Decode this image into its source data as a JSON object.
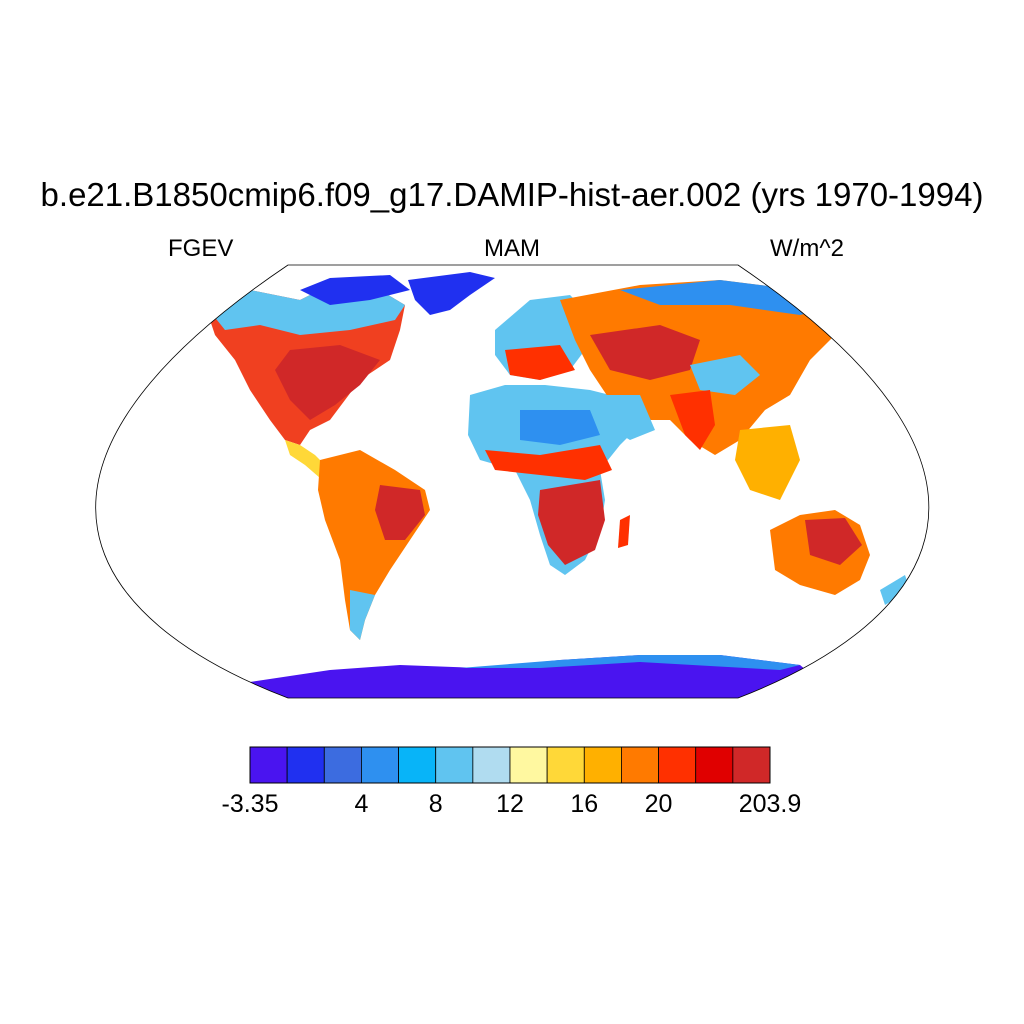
{
  "title": "b.e21.B1850cmip6.f09_g17.DAMIP-hist-aer.002 (yrs 1970-1994)",
  "left_label": "FGEV",
  "center_label": "MAM",
  "right_label": "W/m^2",
  "map": {
    "projection": "robinson",
    "field": "FGEV",
    "ocean_masked": true
  },
  "colorbar": {
    "colors": [
      "#4a14f0",
      "#2030f0",
      "#3c6ce0",
      "#2e90f0",
      "#08b4f8",
      "#60c4f0",
      "#b0dcf0",
      "#fff8a0",
      "#ffd838",
      "#ffb000",
      "#ff7a00",
      "#ff3000",
      "#e00000",
      "#d02828"
    ],
    "labels": [
      {
        "text": "-3.35",
        "index": 0
      },
      {
        "text": "4",
        "index": 3
      },
      {
        "text": "8",
        "index": 5
      },
      {
        "text": "12",
        "index": 7
      },
      {
        "text": "16",
        "index": 9
      },
      {
        "text": "20",
        "index": 11
      },
      {
        "text": "203.9",
        "index": 14
      }
    ]
  }
}
